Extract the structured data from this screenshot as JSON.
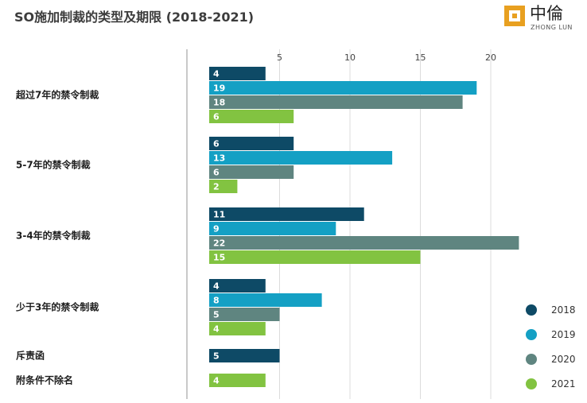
{
  "logo": {
    "name_cn": "中倫",
    "name_en": "ZHONG LUN"
  },
  "chart_data": {
    "type": "bar",
    "orientation": "horizontal",
    "title": "SO施加制裁的类型及期限 (2018-2021)",
    "categories": [
      "超过7年的禁令制裁",
      "5-7年的禁令制裁",
      "3-4年的禁令制裁",
      "少于3年的禁令制裁",
      "斥责函",
      "附条件不除名"
    ],
    "series": [
      {
        "name": "2018",
        "color": "#0e4a66",
        "values": [
          4,
          6,
          11,
          4,
          5,
          null
        ]
      },
      {
        "name": "2019",
        "color": "#14a0c4",
        "values": [
          19,
          13,
          9,
          8,
          null,
          null
        ]
      },
      {
        "name": "2020",
        "color": "#5f8580",
        "values": [
          18,
          6,
          22,
          5,
          null,
          null
        ]
      },
      {
        "name": "2021",
        "color": "#82c341",
        "values": [
          6,
          2,
          15,
          4,
          null,
          4
        ]
      }
    ],
    "x_ticks": [
      5,
      10,
      15,
      20
    ],
    "xlim": [
      0,
      23
    ],
    "grid": true,
    "legend_position": "bottom-right",
    "bar_labels": true
  }
}
